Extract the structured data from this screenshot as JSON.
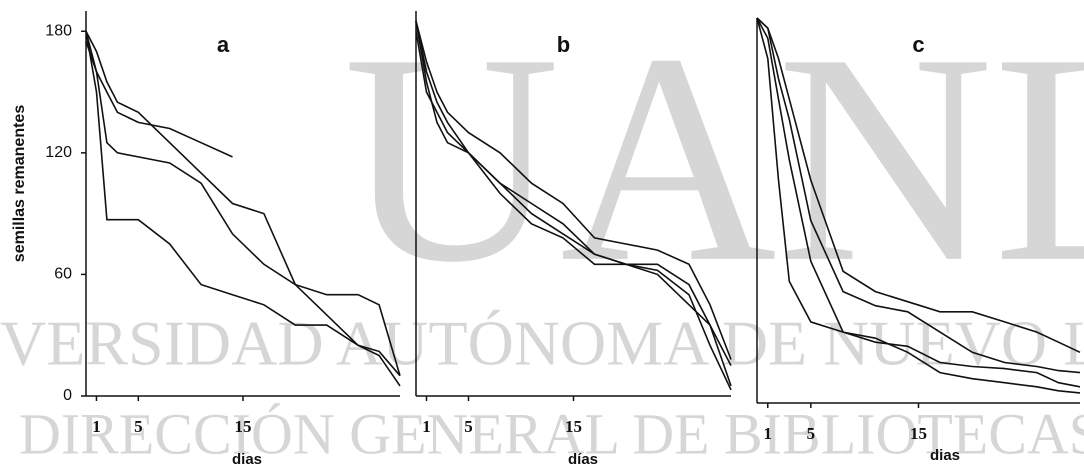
{
  "watermark": {
    "big": "UANL",
    "line1": "UNIVERSIDAD AUTÓNOMA DE NUEVO LEÓN",
    "line2": "DIRECCIÓN GENERAL DE BIBLIOTECAS"
  },
  "chart_data": [
    {
      "type": "line",
      "title": "a",
      "ylabel": "semillas remanentes",
      "xlabel": "dias",
      "x": [
        0,
        1,
        2,
        3,
        5,
        8,
        11,
        14,
        17,
        20,
        23,
        26,
        28,
        30
      ],
      "xlim": [
        0,
        30
      ],
      "xticks": [
        1,
        5,
        15
      ],
      "ylim": [
        0,
        190
      ],
      "yticks": [
        0,
        60,
        120,
        180
      ],
      "series": [
        {
          "color": "#111",
          "values": [
            180,
            150,
            87,
            87,
            87,
            75,
            55,
            50,
            45,
            35,
            35,
            25,
            20,
            5
          ]
        },
        {
          "color": "#111",
          "values": [
            180,
            160,
            125,
            120,
            118,
            115,
            105,
            80,
            65,
            55,
            40,
            25,
            22,
            10
          ]
        },
        {
          "color": "#111",
          "values": [
            180,
            170,
            155,
            145,
            140,
            125,
            110,
            95,
            90,
            55,
            50,
            50,
            45,
            10
          ]
        },
        {
          "color": "#111",
          "values": [
            175,
            160,
            150,
            140,
            135,
            132,
            125,
            118,
            null,
            null,
            null,
            null,
            null,
            null
          ]
        }
      ]
    },
    {
      "type": "line",
      "title": "b",
      "xlabel": "días",
      "x": [
        0,
        1,
        2,
        3,
        5,
        8,
        11,
        14,
        17,
        20,
        23,
        26,
        28,
        30
      ],
      "xlim": [
        0,
        30
      ],
      "xticks": [
        1,
        5,
        15
      ],
      "ylim": [
        0,
        190
      ],
      "series": [
        {
          "color": "#111",
          "values": [
            185,
            155,
            135,
            125,
            120,
            105,
            90,
            80,
            70,
            65,
            65,
            55,
            35,
            5
          ]
        },
        {
          "color": "#111",
          "values": [
            185,
            160,
            145,
            135,
            120,
            100,
            85,
            78,
            65,
            65,
            62,
            50,
            25,
            3
          ]
        },
        {
          "color": "#111",
          "values": [
            185,
            165,
            150,
            140,
            130,
            120,
            105,
            95,
            78,
            75,
            72,
            65,
            45,
            18
          ]
        },
        {
          "color": "#111",
          "values": [
            180,
            150,
            140,
            130,
            120,
            105,
            95,
            85,
            70,
            65,
            60,
            45,
            35,
            15
          ]
        }
      ]
    },
    {
      "type": "line",
      "title": "c",
      "xlabel": "dias",
      "x": [
        0,
        1,
        2,
        3,
        5,
        8,
        11,
        14,
        17,
        20,
        23,
        26,
        28,
        30
      ],
      "xlim": [
        0,
        30
      ],
      "xticks": [
        1,
        5,
        15
      ],
      "ylim": [
        0,
        190
      ],
      "series": [
        {
          "color": "#111",
          "values": [
            190,
            170,
            110,
            60,
            40,
            35,
            32,
            25,
            15,
            12,
            10,
            8,
            6,
            5
          ]
        },
        {
          "color": "#111",
          "values": [
            190,
            180,
            150,
            120,
            70,
            35,
            30,
            28,
            20,
            18,
            17,
            15,
            10,
            8
          ]
        },
        {
          "color": "#111",
          "values": [
            190,
            185,
            160,
            140,
            90,
            55,
            48,
            45,
            35,
            25,
            20,
            18,
            16,
            15
          ]
        },
        {
          "color": "#111",
          "values": [
            190,
            185,
            170,
            150,
            110,
            65,
            55,
            50,
            45,
            45,
            40,
            35,
            30,
            25
          ]
        }
      ]
    }
  ]
}
